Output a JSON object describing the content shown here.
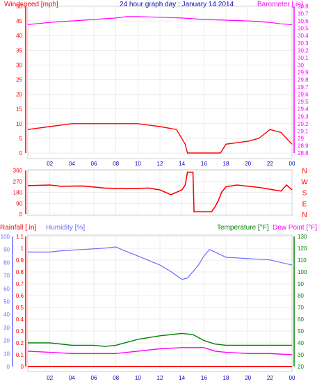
{
  "header": {
    "title": "24 hour graph day : January 14 2014",
    "wind_label": "Windspeed [mph]",
    "baro_label": "Barometer [ in]",
    "rain_label": "Rainfall [.in]",
    "humidity_label": "Humidity [%]",
    "temp_label": "Temperature [°F]",
    "dew_label": "Dew Point [°F]"
  },
  "colors": {
    "wind": "#ff0000",
    "wind_avg": "#0000ff",
    "wind_low": "#008000",
    "baro": "#ff00ff",
    "dir": "#ff0000",
    "humidity": "#6b6bff",
    "temp": "#008000",
    "dew": "#ff00ff",
    "rain": "#ff0000",
    "sun": "#ffff00",
    "axis_wind": "#ff0000",
    "axis_baro": "#ff00ff",
    "axis_temp": "#008000",
    "axis_hum": "#6b6bff",
    "grid": "#d8d8d8",
    "hour_ticks": "#0000c0"
  },
  "chart_data": [
    {
      "type": "line",
      "title": "24 hour graph day : January 14 2014",
      "x_ticks": [
        "02",
        "04",
        "06",
        "08",
        "10",
        "12",
        "14",
        "16",
        "18",
        "20",
        "22",
        "00"
      ],
      "y_left": {
        "label": "Windspeed [mph]",
        "ticks": [
          "0",
          "5",
          "10",
          "15",
          "20",
          "25",
          "30",
          "35",
          "40",
          "45",
          "50"
        ],
        "range": [
          0,
          50
        ]
      },
      "y_right": {
        "label": "Barometer [ in]",
        "ticks": [
          "28.8",
          "28.9",
          "29",
          "29.1",
          "29.2",
          "29.3",
          "29.4",
          "29.5",
          "29.6",
          "29.7",
          "29.8",
          "29.9",
          "30",
          "30.1",
          "30.2",
          "30.3",
          "30.4",
          "30.5",
          "30.6",
          "30.7",
          "30.8"
        ],
        "range": [
          28.8,
          30.8
        ]
      },
      "series": [
        {
          "name": "Windspeed [mph]",
          "points": [
            [
              0,
              8
            ],
            [
              2,
              9
            ],
            [
              4,
              10
            ],
            [
              6,
              10
            ],
            [
              8,
              10
            ],
            [
              10,
              10
            ],
            [
              12,
              9
            ],
            [
              13.5,
              8
            ],
            [
              14.3,
              3
            ],
            [
              14.5,
              0
            ],
            [
              17.5,
              0
            ],
            [
              18,
              3
            ],
            [
              20,
              4
            ],
            [
              21,
              5
            ],
            [
              22,
              8
            ],
            [
              23,
              7
            ],
            [
              24,
              3
            ]
          ]
        },
        {
          "name": "Barometer [ in]",
          "points": [
            [
              0,
              30.55
            ],
            [
              2,
              30.58
            ],
            [
              4,
              30.6
            ],
            [
              6,
              30.62
            ],
            [
              8,
              30.64
            ],
            [
              9,
              30.66
            ],
            [
              10,
              30.66
            ],
            [
              12,
              30.65
            ],
            [
              14,
              30.64
            ],
            [
              16,
              30.62
            ],
            [
              18,
              30.61
            ],
            [
              20,
              30.6
            ],
            [
              22,
              30.58
            ],
            [
              23,
              30.56
            ],
            [
              24,
              30.55
            ]
          ]
        }
      ]
    },
    {
      "type": "line",
      "x_ticks": [
        "02",
        "04",
        "06",
        "08",
        "10",
        "12",
        "14",
        "16",
        "18",
        "20",
        "22",
        "00"
      ],
      "y_left": {
        "ticks": [
          "0",
          "90",
          "180",
          "270",
          "360"
        ],
        "range": [
          0,
          360
        ]
      },
      "y_right": {
        "ticks": [
          "N",
          "W",
          "S",
          "E",
          "N"
        ]
      },
      "series": [
        {
          "name": "Wind direction",
          "points": [
            [
              0,
              235
            ],
            [
              2,
              240
            ],
            [
              3,
              230
            ],
            [
              5,
              232
            ],
            [
              7,
              215
            ],
            [
              9,
              210
            ],
            [
              11,
              215
            ],
            [
              12,
              200
            ],
            [
              13,
              160
            ],
            [
              14,
              200
            ],
            [
              14.3,
              240
            ],
            [
              14.5,
              345
            ],
            [
              15,
              345
            ],
            [
              15.1,
              20
            ],
            [
              16.7,
              20
            ],
            [
              17,
              60
            ],
            [
              17.3,
              110
            ],
            [
              17.6,
              180
            ],
            [
              18,
              225
            ],
            [
              19,
              240
            ],
            [
              21,
              220
            ],
            [
              23,
              190
            ],
            [
              23.5,
              240
            ],
            [
              24,
              200
            ]
          ]
        }
      ]
    },
    {
      "type": "line",
      "x_ticks": [
        "02",
        "04",
        "06",
        "08",
        "10",
        "12",
        "14",
        "16",
        "18",
        "20",
        "22",
        "00"
      ],
      "y_left_rain": {
        "label": "Rainfall [.in]",
        "ticks": [
          "0",
          "0.1",
          "0.2",
          "0.3",
          "0.4",
          "0.5",
          "0.6",
          "0.7",
          "0.8",
          "0.9",
          "1",
          "1.1"
        ],
        "range": [
          0,
          1.1
        ]
      },
      "y_left_humidity": {
        "label": "Humidity [%]",
        "ticks": [
          "0",
          "10",
          "20",
          "30",
          "40",
          "50",
          "60",
          "70",
          "80",
          "90",
          "100"
        ],
        "range": [
          0,
          100
        ]
      },
      "y_right": {
        "label": "Temperature [°F]",
        "ticks": [
          "20",
          "30",
          "40",
          "50",
          "60",
          "70",
          "80",
          "90",
          "100",
          "110",
          "120",
          "130"
        ],
        "range": [
          20,
          130
        ]
      },
      "series": [
        {
          "name": "Humidity [%]",
          "points": [
            [
              0,
              88
            ],
            [
              2,
              88
            ],
            [
              3,
              89
            ],
            [
              5,
              90
            ],
            [
              7,
              91
            ],
            [
              8,
              92
            ],
            [
              8.5,
              90
            ],
            [
              10,
              85
            ],
            [
              12,
              78
            ],
            [
              13,
              73
            ],
            [
              14,
              67
            ],
            [
              14.5,
              68
            ],
            [
              15.5,
              78
            ],
            [
              16,
              85
            ],
            [
              16.5,
              90
            ],
            [
              17,
              88
            ],
            [
              18,
              84
            ],
            [
              20,
              83
            ],
            [
              22,
              82
            ],
            [
              23,
              80
            ],
            [
              24,
              78
            ]
          ]
        },
        {
          "name": "Temperature [°F]",
          "points": [
            [
              0,
              40
            ],
            [
              2,
              40
            ],
            [
              4,
              38
            ],
            [
              6,
              38
            ],
            [
              7,
              37
            ],
            [
              8,
              38
            ],
            [
              10,
              43
            ],
            [
              12,
              46
            ],
            [
              14,
              48
            ],
            [
              15,
              47
            ],
            [
              16,
              42
            ],
            [
              17,
              39
            ],
            [
              18,
              38
            ],
            [
              20,
              38
            ],
            [
              22,
              38
            ],
            [
              24,
              38
            ]
          ]
        },
        {
          "name": "Dew Point [°F]",
          "points": [
            [
              0,
              33
            ],
            [
              2,
              32
            ],
            [
              4,
              31
            ],
            [
              6,
              31
            ],
            [
              8,
              31
            ],
            [
              10,
              33
            ],
            [
              12,
              35
            ],
            [
              14,
              36
            ],
            [
              16,
              36
            ],
            [
              17,
              33
            ],
            [
              18,
              32
            ],
            [
              20,
              31
            ],
            [
              22,
              31
            ],
            [
              24,
              30
            ]
          ]
        },
        {
          "name": "Rainfall [.in]",
          "points": [
            [
              0,
              0
            ],
            [
              24,
              0
            ]
          ]
        }
      ]
    }
  ]
}
